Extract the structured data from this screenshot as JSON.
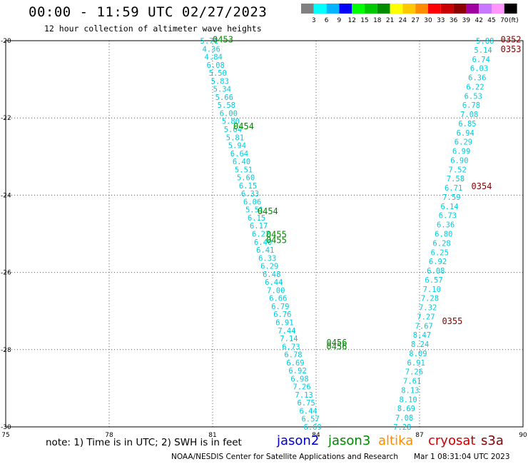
{
  "header": {
    "title": "00:00 - 11:59 UTC 02/27/2023",
    "subtitle": "12 hour collection of altimeter wave heights"
  },
  "legend_scale": {
    "colors": [
      "#808080",
      "#00ffff",
      "#00b4ff",
      "#0000ff",
      "#00ff00",
      "#00c800",
      "#008c00",
      "#ffff00",
      "#ffc800",
      "#ff8c00",
      "#ff0000",
      "#c80000",
      "#8c0000",
      "#a000a0",
      "#c878ff",
      "#ff96ff",
      "#000000"
    ],
    "labels": [
      "3",
      "6",
      "9",
      "12",
      "15",
      "18",
      "21",
      "24",
      "27",
      "30",
      "33",
      "36",
      "39",
      "42",
      "45",
      "70"
    ],
    "unit": "(ft)"
  },
  "footer": {
    "note": "note:  1) Time is in UTC; 2) SWH is in feet",
    "satellites": [
      {
        "name": "jason2",
        "color": "#0000cc"
      },
      {
        "name": "jason3",
        "color": "#008800"
      },
      {
        "name": "altika",
        "color": "#ff8c00"
      },
      {
        "name": "cryosat",
        "color": "#cc0000"
      },
      {
        "name": "s3a",
        "color": "#880000"
      }
    ],
    "credit": "NOAA/NESDIS Center for Satellite Applications and Research",
    "timestamp": "Mar  1 08:31:04 UTC 2023"
  },
  "chart_data": {
    "type": "scatter",
    "xlim": [
      75,
      90
    ],
    "ylim": [
      -30,
      -20
    ],
    "xticks": [
      "75",
      "78",
      "81",
      "84",
      "87",
      "90"
    ],
    "yticks": [
      "-20",
      "-22",
      "-24",
      "-26",
      "-28",
      "-30"
    ],
    "grid": true,
    "value_color": "#00ccdd",
    "tracks": [
      {
        "name": "jason3 descending track",
        "x_start": 80.9,
        "y_start": -20.0,
        "x_end": 83.9,
        "y_end": -30.0,
        "values": [
          "5.71",
          "4.36",
          "4.84",
          "6.08",
          "5.50",
          "5.83",
          "5.34",
          "5.66",
          "5.58",
          "6.00",
          "5.80",
          "5.64",
          "5.81",
          "5.94",
          "6.64",
          "6.40",
          "5.51",
          "5.60",
          "6.15",
          "6.33",
          "6.06",
          "5.51",
          "6.15",
          "6.17",
          "6.22",
          "6.40",
          "6.41",
          "6.33",
          "6.29",
          "6.48",
          "6.44",
          "7.00",
          "6.66",
          "6.79",
          "6.76",
          "6.91",
          "7.44",
          "7.14",
          "6.73",
          "6.78",
          "6.69",
          "6.92",
          "6.98",
          "7.26",
          "7.13",
          "6.75",
          "6.44",
          "6.57",
          "6.69"
        ]
      },
      {
        "name": "s3a ascending track",
        "x_start": 88.9,
        "y_start": -20.0,
        "x_end": 86.5,
        "y_end": -30.0,
        "values": [
          "5.88",
          "5.14",
          "6.74",
          "6.03",
          "6.36",
          "6.22",
          "6.53",
          "6.78",
          "7.08",
          "6.85",
          "6.94",
          "6.29",
          "6.99",
          "6.90",
          "7.52",
          "7.58",
          "6.71",
          "7.59",
          "6.14",
          "6.73",
          "6.36",
          "6.80",
          "6.28",
          "6.25",
          "6.92",
          "6.08",
          "6.57",
          "7.10",
          "7.28",
          "7.32",
          "7.27",
          "7.67",
          "8.47",
          "8.24",
          "8.09",
          "6.91",
          "7.26",
          "7.61",
          "8.13",
          "8.10",
          "8.69",
          "7.08",
          "7.28"
        ]
      }
    ],
    "time_labels": [
      {
        "text": "0453",
        "x": 81.3,
        "y": -19.95,
        "color": "#008800"
      },
      {
        "text": "0454",
        "x": 81.9,
        "y": -22.2,
        "color": "#008800"
      },
      {
        "text": "0454",
        "x": 82.6,
        "y": -24.4,
        "color": "#008800"
      },
      {
        "text": "0455",
        "x": 82.85,
        "y": -25.0,
        "color": "#008800"
      },
      {
        "text": "0455",
        "x": 82.85,
        "y": -25.15,
        "color": "#008800"
      },
      {
        "text": "0456",
        "x": 84.6,
        "y": -27.8,
        "color": "#008800"
      },
      {
        "text": "0456",
        "x": 84.6,
        "y": -27.9,
        "color": "#008800"
      },
      {
        "text": "0352",
        "x": 89.65,
        "y": -19.95,
        "color": "#880000"
      },
      {
        "text": "0353",
        "x": 89.65,
        "y": -20.2,
        "color": "#880000"
      },
      {
        "text": "0354",
        "x": 88.8,
        "y": -23.75,
        "color": "#880000"
      },
      {
        "text": "0355",
        "x": 87.95,
        "y": -27.25,
        "color": "#880000"
      }
    ]
  }
}
